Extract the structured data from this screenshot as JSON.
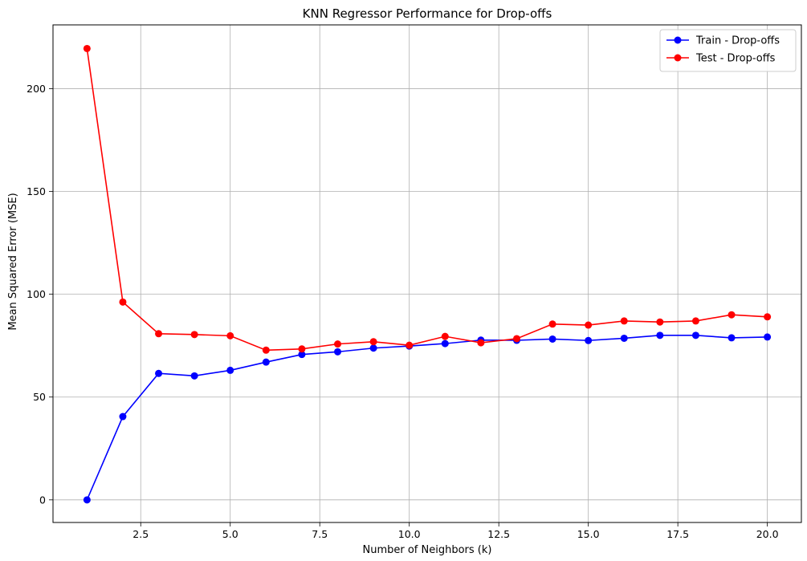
{
  "chart_data": {
    "type": "line",
    "title": "KNN Regressor Performance for Drop-offs",
    "xlabel": "Number of Neighbors (k)",
    "ylabel": "Mean Squared Error (MSE)",
    "xlim": [
      0.05,
      20.95
    ],
    "ylim": [
      -11,
      231
    ],
    "xticks": [
      2.5,
      5.0,
      7.5,
      10.0,
      12.5,
      15.0,
      17.5,
      20.0
    ],
    "xtick_labels": [
      "2.5",
      "5.0",
      "7.5",
      "10.0",
      "12.5",
      "15.0",
      "17.5",
      "20.0"
    ],
    "yticks": [
      0,
      50,
      100,
      150,
      200
    ],
    "ytick_labels": [
      "0",
      "50",
      "100",
      "150",
      "200"
    ],
    "grid": true,
    "legend_position": "top-right",
    "x": [
      1,
      2,
      3,
      4,
      5,
      6,
      7,
      8,
      9,
      10,
      11,
      12,
      13,
      14,
      15,
      16,
      17,
      18,
      19,
      20
    ],
    "series": [
      {
        "name": "Train - Drop-offs",
        "color": "#0000ff",
        "values": [
          0,
          40.5,
          61.5,
          60.3,
          63.0,
          67.0,
          70.7,
          72.0,
          73.8,
          74.8,
          76.0,
          77.7,
          77.6,
          78.2,
          77.5,
          78.6,
          80.0,
          80.0,
          78.8,
          79.2
        ]
      },
      {
        "name": "Test - Drop-offs",
        "color": "#ff0000",
        "values": [
          219.5,
          96.2,
          80.8,
          80.4,
          79.8,
          72.8,
          73.4,
          75.8,
          76.9,
          75.2,
          79.5,
          76.4,
          78.4,
          85.5,
          85.0,
          87.0,
          86.5,
          87.0,
          90.0,
          89.0
        ]
      }
    ]
  }
}
